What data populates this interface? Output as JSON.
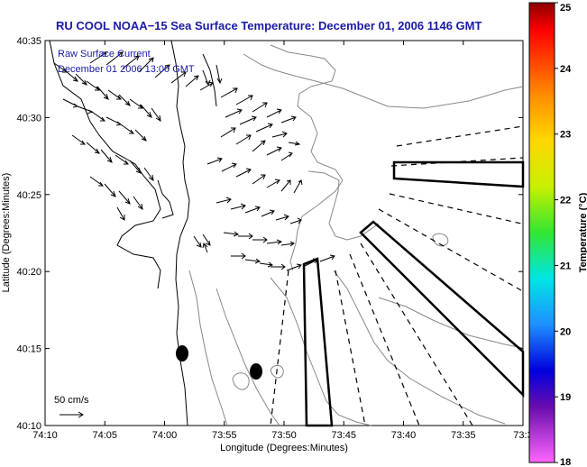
{
  "title": "RU COOL  NOAA−15  Sea Surface Temperature:  December 01, 2006 1146 GMT",
  "legend": {
    "line1": "Raw Surface Current",
    "line2": "December 01 2006 13:00 GMT",
    "scale_label": "50 cm/s"
  },
  "axes": {
    "xlabel": "Longitude (Degrees:Minutes)",
    "ylabel": "Latitude (Degrees:Minutes)",
    "x_ticks": [
      "74:10",
      "74:05",
      "74:00",
      "73:55",
      "73:50",
      "73:45",
      "73:40",
      "73:35",
      "73:3"
    ],
    "y_ticks": [
      "40:35",
      "40:30",
      "40:25",
      "40:20",
      "40:15",
      "40:10"
    ]
  },
  "colorbar": {
    "label": "Temperature (°C)",
    "min": 18,
    "max": 25,
    "ticks": [
      "25",
      "24",
      "23",
      "22",
      "21",
      "20",
      "19",
      "18"
    ]
  },
  "map_features": {
    "markers": [
      "buoy-marker",
      "buoy-marker"
    ],
    "boxes": [
      "box-east",
      "box-southeast",
      "box-south"
    ]
  }
}
